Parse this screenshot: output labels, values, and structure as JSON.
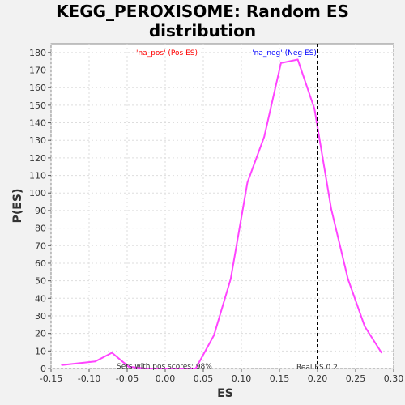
{
  "title_lines": [
    "KEGG_PEROXISOME: Random ES",
    "distribution"
  ],
  "chart_data": {
    "type": "line",
    "title": "KEGG_PEROXISOME: Random ES distribution",
    "xlabel": "ES",
    "ylabel": "P(ES)",
    "xlim": [
      -0.15,
      0.3
    ],
    "ylim": [
      0,
      185
    ],
    "xticks": [
      "-0.15",
      "-0.10",
      "-0.05",
      "0.00",
      "0.05",
      "0.10",
      "0.15",
      "0.20",
      "0.25",
      "0.30"
    ],
    "xtick_values": [
      -0.15,
      -0.1,
      -0.05,
      0.0,
      0.05,
      0.1,
      0.15,
      0.2,
      0.25,
      0.3
    ],
    "yticks": [
      "0",
      "10",
      "20",
      "30",
      "40",
      "50",
      "60",
      "70",
      "80",
      "90",
      "100",
      "110",
      "120",
      "130",
      "140",
      "150",
      "160",
      "170",
      "180"
    ],
    "ytick_values": [
      0,
      10,
      20,
      30,
      40,
      50,
      60,
      70,
      80,
      90,
      100,
      110,
      120,
      130,
      140,
      150,
      160,
      170,
      180
    ],
    "grid": true,
    "series": [
      {
        "color": "#ff44ff",
        "x": [
          -0.136,
          -0.114,
          -0.092,
          -0.07,
          -0.048,
          -0.026,
          -0.004,
          0.018,
          0.04,
          0.064,
          0.086,
          0.108,
          0.13,
          0.152,
          0.174,
          0.196,
          0.218,
          0.24,
          0.262,
          0.284
        ],
        "y": [
          2,
          3,
          4,
          9,
          1,
          0,
          0,
          0,
          0,
          19,
          51,
          106,
          132,
          174,
          176,
          148,
          91,
          51,
          24,
          9
        ]
      }
    ],
    "real_es": {
      "x": 0.2,
      "label": "Real ES 0.2",
      "color": "#000000"
    },
    "annotations": {
      "pos": {
        "text": "'na_pos' (Pos ES)",
        "color": "#ff0000"
      },
      "neg": {
        "text": "'na_neg' (Neg ES)",
        "color": "#0000ff"
      },
      "sets": {
        "text": "Sets with pos scores: 98%",
        "color": "#333333"
      }
    },
    "colors": {
      "plot_bg": "#ffffff",
      "page_bg": "#f2f2f2",
      "grid": "#dddddd",
      "axis": "#000000"
    }
  }
}
